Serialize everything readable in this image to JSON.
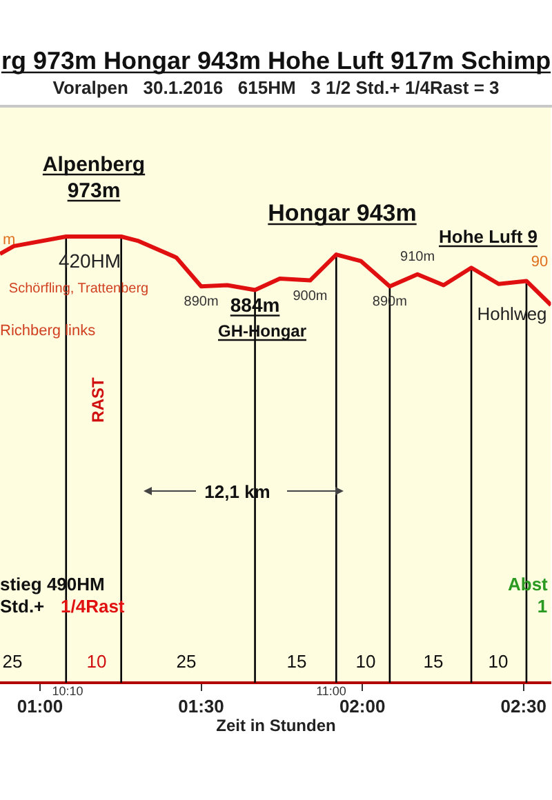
{
  "chart_data": {
    "type": "line",
    "title": "rg 973m Hongar 943m Hohe Luft 917m Schimp",
    "subtitle": "Voralpen   30.1.2016   615HM   3 1/2 Std.+ 1/4Rast = 3",
    "xlabel": "Zeit in Stunden",
    "x": [
      0.876,
      0.919,
      1.081,
      1.252,
      1.303,
      1.423,
      1.5,
      1.581,
      1.667,
      1.744,
      1.838,
      1.919,
      1.996,
      2.085,
      2.171,
      2.252,
      2.338,
      2.423,
      2.509,
      2.585
    ],
    "series": [
      {
        "color": "#e01010",
        "values": [
          944,
          957,
          973,
          973,
          966,
          938,
          890,
          892,
          884,
          903,
          900,
          943,
          932,
          890,
          910,
          892,
          921,
          894,
          899,
          859
        ],
        "value_labels": [
          null,
          null,
          null,
          null,
          null,
          null,
          "890m",
          null,
          null,
          null,
          "900m",
          null,
          null,
          "890m",
          "910m",
          null,
          null,
          null,
          null,
          null
        ]
      }
    ],
    "xlim": [
      0.876,
      2.585
    ],
    "ylim": [
      230,
      1190
    ],
    "xticks": [
      {
        "value": 1,
        "label": "01:00"
      },
      {
        "value": 1.5,
        "label": "01:30"
      },
      {
        "value": 2,
        "label": "02:00"
      },
      {
        "value": 2.5,
        "label": "02:30"
      }
    ],
    "tick_labels": "x",
    "marker": "none",
    "line_style": "solid",
    "legend": false,
    "ref_lines": [
      {
        "axis": "x",
        "value": 1.081,
        "color": "#000000"
      },
      {
        "axis": "x",
        "value": 1.252,
        "color": "#000000"
      },
      {
        "axis": "x",
        "value": 1.667,
        "color": "#000000"
      },
      {
        "axis": "x",
        "value": 1.919,
        "color": "#000000"
      },
      {
        "axis": "x",
        "value": 2.085,
        "color": "#000000"
      },
      {
        "axis": "x",
        "value": 2.338,
        "color": "#000000"
      },
      {
        "axis": "x",
        "value": 2.509,
        "color": "#000000"
      }
    ],
    "annotations": [
      "Alpenberg",
      "973m",
      "Hongar 943m",
      "Hohe Luft 9",
      "420HM",
      "Schörfling, Trattenberg",
      "Richberg links",
      "GH-Hongar",
      "Hohlweg",
      "RAST",
      "12,1 km",
      "stieg 490HM",
      "Std.+",
      "1/4Rast",
      "Abst",
      "1",
      "10:10",
      "11:00",
      "25",
      "10",
      "25",
      "15",
      "10",
      "15",
      "10",
      "m",
      "90",
      {
        "text": "884m",
        "x": 1.667,
        "y": 884
      }
    ]
  }
}
